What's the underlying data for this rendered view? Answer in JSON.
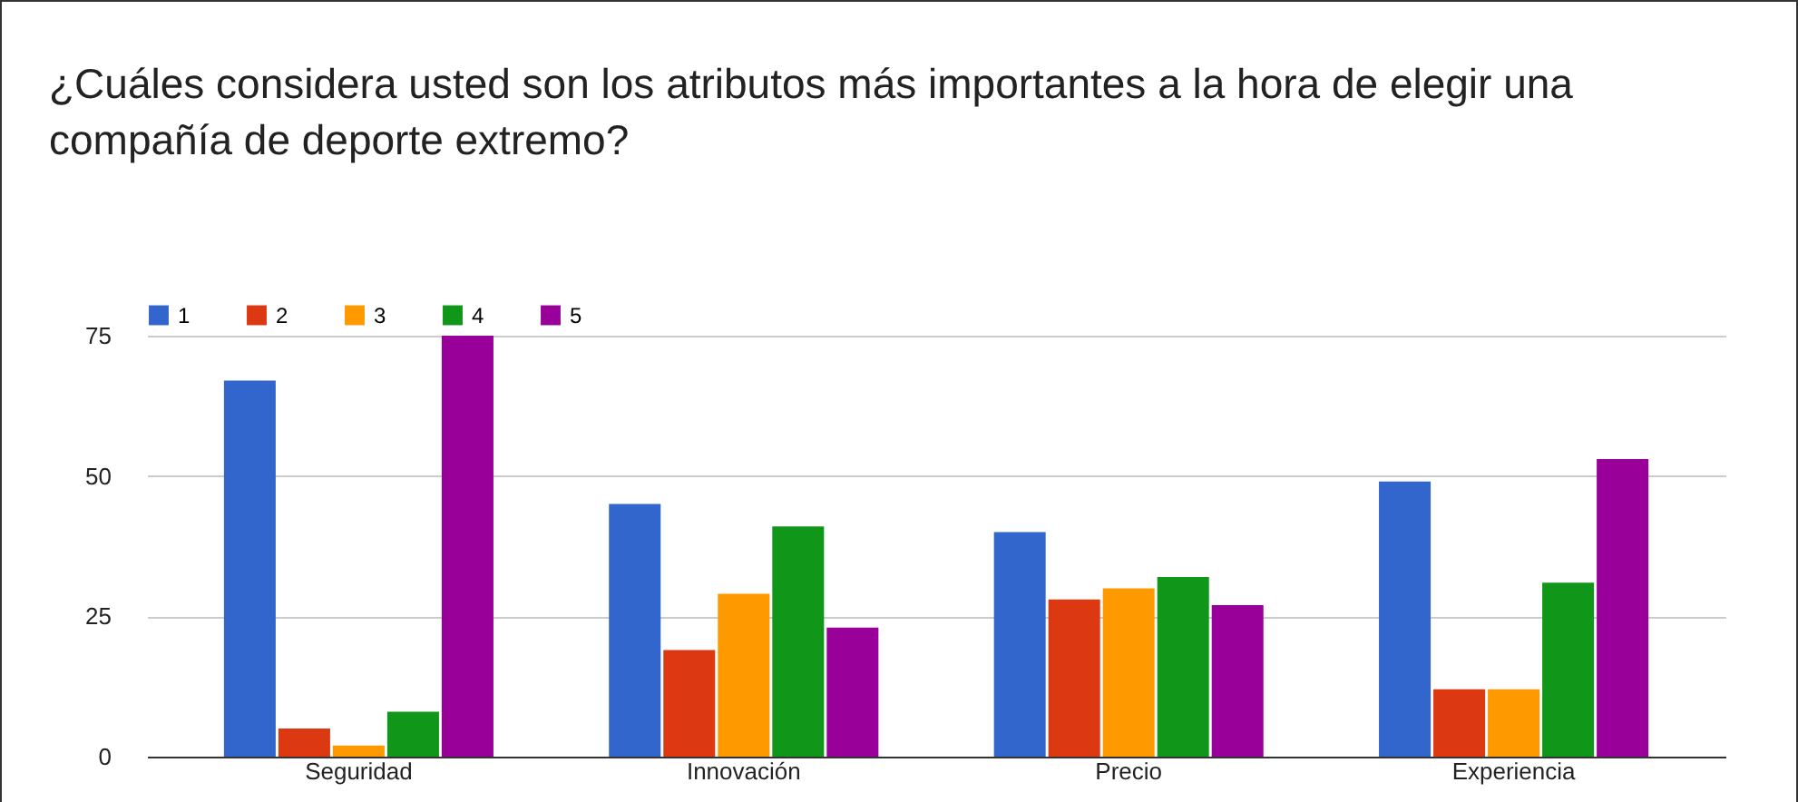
{
  "chart_data": {
    "type": "bar",
    "title": "¿Cuáles considera usted son los atributos más importantes a la hora de elegir una compañía de deporte extremo?",
    "categories": [
      "Seguridad",
      "Innovación",
      "Precio",
      "Experiencia"
    ],
    "series": [
      {
        "name": "1",
        "color": "#3366cc",
        "values": [
          67,
          45,
          40,
          49
        ]
      },
      {
        "name": "2",
        "color": "#dc3912",
        "values": [
          5,
          19,
          28,
          12
        ]
      },
      {
        "name": "3",
        "color": "#ff9900",
        "values": [
          2,
          29,
          30,
          12
        ]
      },
      {
        "name": "4",
        "color": "#109618",
        "values": [
          8,
          41,
          32,
          31
        ]
      },
      {
        "name": "5",
        "color": "#990099",
        "values": [
          75,
          23,
          27,
          53
        ]
      }
    ],
    "ylim": [
      0,
      75
    ],
    "yticks": [
      0,
      25,
      50,
      75
    ],
    "grid": "y",
    "legend": "top left"
  }
}
